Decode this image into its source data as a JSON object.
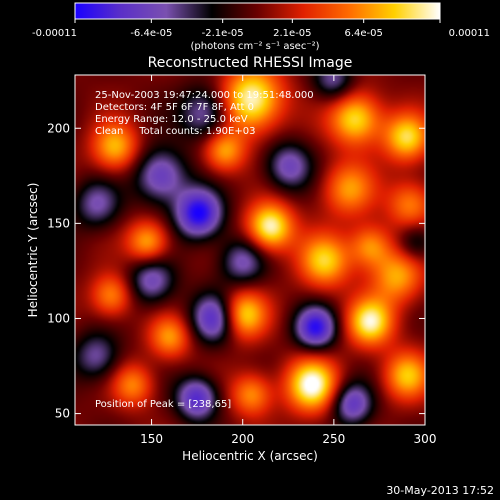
{
  "colorbar": {
    "ticks": [
      "-0.00011",
      "-6.4e-05",
      "-2.1e-05",
      "2.1e-05",
      "6.4e-05",
      "0.00011"
    ],
    "unit_label": "(photons cm⁻² s⁻¹ asec⁻²)",
    "colors": [
      "#1a00ff",
      "#5a2fc8",
      "#7a50b0",
      "#000000",
      "#6a0000",
      "#e02000",
      "#ff6a00",
      "#ffd000",
      "#ffffff"
    ]
  },
  "chart_data": {
    "type": "heatmap",
    "title": "Reconstructed RHESSI Image",
    "xlabel": "Heliocentric X (arcsec)",
    "ylabel": "Heliocentric Y (arcsec)",
    "xlim": [
      108,
      300
    ],
    "ylim": [
      44,
      228
    ],
    "x_ticks": [
      150,
      200,
      250,
      300
    ],
    "y_ticks": [
      50,
      100,
      150,
      200
    ],
    "value_range": [
      -0.00011,
      0.00011
    ],
    "peak": [
      238,
      65
    ],
    "info_lines": [
      "25-Nov-2003 19:47:24.000 to 19:51:48.000",
      "Detectors: 4F 5F 6F 7F 8F, Att 0",
      "Energy Range: 12.0 - 25.0 keV",
      "Clean     Total counts: 1.90E+03"
    ],
    "peak_label": "Position of Peak = [238,65]",
    "blobs": [
      {
        "x": 205,
        "y": 215,
        "v": 1.0,
        "s": 12
      },
      {
        "x": 262,
        "y": 205,
        "v": 0.85,
        "s": 10
      },
      {
        "x": 290,
        "y": 195,
        "v": 0.8,
        "s": 9
      },
      {
        "x": 130,
        "y": 190,
        "v": 0.7,
        "s": 9
      },
      {
        "x": 190,
        "y": 188,
        "v": 0.65,
        "s": 8
      },
      {
        "x": 258,
        "y": 168,
        "v": 0.6,
        "s": 10
      },
      {
        "x": 292,
        "y": 160,
        "v": 0.55,
        "s": 9
      },
      {
        "x": 215,
        "y": 148,
        "v": 1.0,
        "s": 9
      },
      {
        "x": 148,
        "y": 140,
        "v": 0.7,
        "s": 8
      },
      {
        "x": 245,
        "y": 130,
        "v": 0.75,
        "s": 10
      },
      {
        "x": 285,
        "y": 122,
        "v": 0.65,
        "s": 10
      },
      {
        "x": 128,
        "y": 112,
        "v": 0.6,
        "s": 8
      },
      {
        "x": 200,
        "y": 102,
        "v": 0.85,
        "s": 9
      },
      {
        "x": 270,
        "y": 98,
        "v": 0.9,
        "s": 9
      },
      {
        "x": 160,
        "y": 90,
        "v": 0.6,
        "s": 8
      },
      {
        "x": 238,
        "y": 65,
        "v": 1.0,
        "s": 10
      },
      {
        "x": 290,
        "y": 70,
        "v": 0.7,
        "s": 9
      },
      {
        "x": 205,
        "y": 60,
        "v": 0.6,
        "s": 8
      },
      {
        "x": 140,
        "y": 65,
        "v": 0.55,
        "s": 8
      },
      {
        "x": 270,
        "y": 138,
        "v": 0.6,
        "s": 8
      },
      {
        "x": 180,
        "y": 208,
        "v": -0.6,
        "s": 10
      },
      {
        "x": 176,
        "y": 155,
        "v": -1.0,
        "s": 9
      },
      {
        "x": 155,
        "y": 175,
        "v": -0.7,
        "s": 10
      },
      {
        "x": 120,
        "y": 160,
        "v": -0.5,
        "s": 9
      },
      {
        "x": 240,
        "y": 95,
        "v": -0.9,
        "s": 8
      },
      {
        "x": 185,
        "y": 100,
        "v": -0.8,
        "s": 9
      },
      {
        "x": 150,
        "y": 120,
        "v": -0.6,
        "s": 9
      },
      {
        "x": 200,
        "y": 130,
        "v": -0.55,
        "s": 9
      },
      {
        "x": 225,
        "y": 180,
        "v": -0.6,
        "s": 9
      },
      {
        "x": 260,
        "y": 55,
        "v": -0.7,
        "s": 8
      },
      {
        "x": 175,
        "y": 58,
        "v": -0.8,
        "s": 8
      },
      {
        "x": 120,
        "y": 80,
        "v": -0.5,
        "s": 9
      },
      {
        "x": 295,
        "y": 140,
        "v": -0.4,
        "s": 7
      },
      {
        "x": 250,
        "y": 225,
        "v": -0.5,
        "s": 8
      }
    ]
  },
  "footer": {
    "timestamp": "30-May-2013 17:52"
  }
}
